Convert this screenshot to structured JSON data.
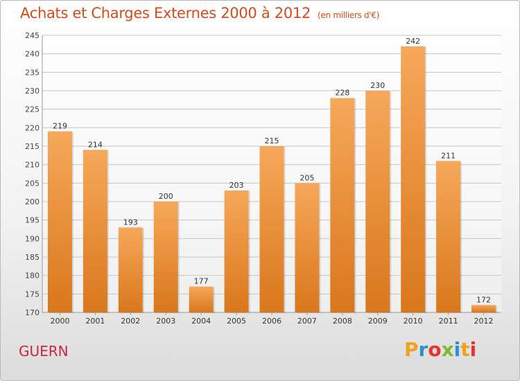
{
  "header": {
    "title": "Achats et Charges Externes 2000 à 2012",
    "subtitle": "(en milliers d'€)"
  },
  "footer": {
    "city": "GUERN",
    "logo_letters": [
      "P",
      "r",
      "o",
      "x",
      "i",
      "t",
      "i"
    ]
  },
  "colors": {
    "bar_top": "#f6a85a",
    "bar_bottom": "#d9771c",
    "title": "#d84a18",
    "city": "#cf2442"
  },
  "chart_data": {
    "type": "bar",
    "title": "Achats et Charges Externes 2000 à 2012",
    "subtitle": "(en milliers d'€)",
    "categories": [
      "2000",
      "2001",
      "2002",
      "2003",
      "2004",
      "2005",
      "2006",
      "2007",
      "2008",
      "2009",
      "2010",
      "2011",
      "2012"
    ],
    "values": [
      219,
      214,
      193,
      200,
      177,
      203,
      215,
      205,
      228,
      230,
      242,
      211,
      172
    ],
    "ylim": [
      170,
      245
    ],
    "yticks": [
      170,
      175,
      180,
      185,
      190,
      195,
      200,
      205,
      210,
      215,
      220,
      225,
      230,
      235,
      240,
      245
    ],
    "grid": true,
    "legend": "none"
  }
}
